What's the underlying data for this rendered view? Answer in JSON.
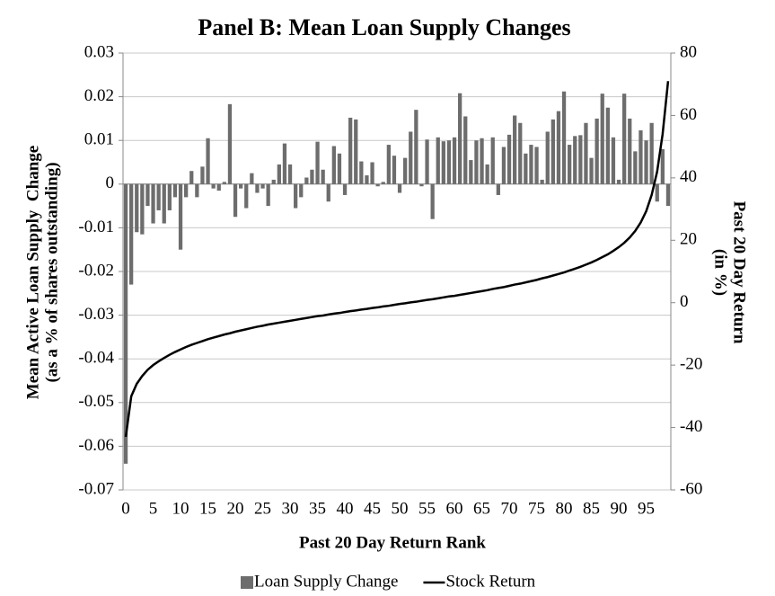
{
  "chart_data": {
    "type": "combo",
    "title": "Panel B: Mean Loan Supply Changes",
    "xlabel": "Past 20 Day Return Rank",
    "ylabel": [
      "Mean Active Loan Supply  Change",
      "(as a % of shares outstanding)"
    ],
    "y2label": [
      "Past 20 Day Return",
      "(in %)"
    ],
    "categories": [
      "0",
      null,
      null,
      null,
      null,
      "5",
      null,
      null,
      null,
      null,
      "10",
      null,
      null,
      null,
      null,
      "15",
      null,
      null,
      null,
      null,
      "20",
      null,
      null,
      null,
      null,
      "25",
      null,
      null,
      null,
      null,
      "30",
      null,
      null,
      null,
      null,
      "35",
      null,
      null,
      null,
      null,
      "40",
      null,
      null,
      null,
      null,
      "45",
      null,
      null,
      null,
      null,
      "50",
      null,
      null,
      null,
      null,
      "55",
      null,
      null,
      null,
      null,
      "60",
      null,
      null,
      null,
      null,
      "65",
      null,
      null,
      null,
      null,
      "70",
      null,
      null,
      null,
      null,
      "75",
      null,
      null,
      null,
      null,
      "80",
      null,
      null,
      null,
      null,
      "85",
      null,
      null,
      null,
      null,
      "90",
      null,
      null,
      null,
      null,
      "95",
      null,
      null,
      null,
      null
    ],
    "series": [
      {
        "name": "Loan Supply Change",
        "type": "bar",
        "color": "#6d6d6d",
        "axis": "y",
        "values": [
          -0.064,
          -0.023,
          -0.011,
          -0.0115,
          -0.005,
          -0.009,
          -0.006,
          -0.009,
          -0.006,
          -0.003,
          -0.015,
          -0.003,
          0.003,
          -0.003,
          0.004,
          0.0105,
          -0.001,
          -0.0015,
          0.0005,
          0.0183,
          -0.0075,
          -0.001,
          -0.0055,
          0.0025,
          -0.002,
          -0.001,
          -0.005,
          0.001,
          0.0045,
          0.0093,
          0.0045,
          -0.0055,
          -0.003,
          0.0015,
          0.0033,
          0.0097,
          0.0033,
          -0.004,
          0.0087,
          0.007,
          -0.0025,
          0.0152,
          0.0148,
          0.0052,
          0.002,
          0.005,
          -0.0005,
          0.0005,
          0.009,
          0.0065,
          -0.002,
          0.006,
          0.012,
          0.017,
          -0.0005,
          0.0102,
          -0.008,
          0.0107,
          0.0098,
          0.01,
          0.0107,
          0.0208,
          0.0155,
          0.0055,
          0.01,
          0.0105,
          0.0045,
          0.0107,
          -0.0025,
          0.0085,
          0.0113,
          0.0157,
          0.014,
          0.007,
          0.009,
          0.0085,
          0.001,
          0.012,
          0.0148,
          0.0167,
          0.0212,
          0.009,
          0.011,
          0.0112,
          0.014,
          0.006,
          0.015,
          0.0207,
          0.0175,
          0.0107,
          0.001,
          0.0207,
          0.015,
          0.0075,
          0.0123,
          0.01,
          0.014,
          -0.004,
          0.008,
          -0.005
        ]
      },
      {
        "name": "Stock Return",
        "type": "line",
        "color": "#000000",
        "axis": "y2",
        "values": [
          -43,
          -30,
          -26,
          -23.5,
          -21.5,
          -20,
          -18.8,
          -17.7,
          -16.7,
          -15.8,
          -15,
          -14.2,
          -13.5,
          -12.9,
          -12.3,
          -11.7,
          -11.2,
          -10.7,
          -10.2,
          -9.8,
          -9.3,
          -8.9,
          -8.5,
          -8.1,
          -7.7,
          -7.4,
          -7,
          -6.7,
          -6.4,
          -6.1,
          -5.8,
          -5.5,
          -5.2,
          -4.9,
          -4.6,
          -4.3,
          -4.1,
          -3.8,
          -3.5,
          -3.3,
          -3,
          -2.7,
          -2.5,
          -2.2,
          -2,
          -1.7,
          -1.5,
          -1.2,
          -1,
          -0.7,
          -0.4,
          -0.2,
          0.1,
          0.3,
          0.6,
          0.9,
          1.1,
          1.4,
          1.7,
          2,
          2.2,
          2.5,
          2.8,
          3.1,
          3.4,
          3.7,
          4,
          4.4,
          4.7,
          5,
          5.4,
          5.8,
          6.1,
          6.5,
          6.9,
          7.3,
          7.8,
          8.2,
          8.7,
          9.2,
          9.7,
          10.3,
          10.9,
          11.5,
          12.2,
          12.9,
          13.7,
          14.6,
          15.5,
          16.6,
          17.8,
          19.2,
          20.9,
          23,
          25.7,
          29.3,
          34.5,
          42,
          54,
          71
        ]
      }
    ],
    "ylim": [
      -0.07,
      0.03
    ],
    "yticks": [
      -0.07,
      -0.06,
      -0.05,
      -0.04,
      -0.03,
      -0.02,
      -0.01,
      0,
      0.01,
      0.02,
      0.03
    ],
    "y2lim": [
      -60,
      80
    ],
    "y2ticks": [
      -60,
      -40,
      -20,
      0,
      20,
      40,
      60,
      80
    ],
    "grid": true,
    "legend": "bottom"
  }
}
